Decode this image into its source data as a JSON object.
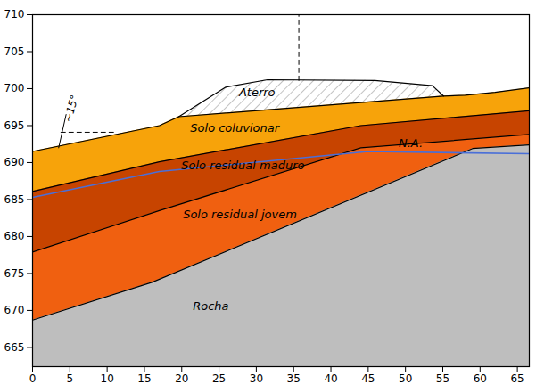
{
  "chart_data": {
    "type": "area",
    "xlim": [
      0,
      66.6
    ],
    "ylim": [
      662.4,
      710
    ],
    "xticks": [
      0,
      5,
      10,
      15,
      20,
      25,
      30,
      35,
      40,
      45,
      50,
      55,
      60,
      65
    ],
    "yticks": [
      665,
      670,
      675,
      680,
      685,
      690,
      695,
      700,
      705,
      710
    ],
    "grid": false,
    "layers": [
      {
        "name": "Aterro",
        "color": "#ffffff",
        "line_style": "hatched",
        "x": [
          19.6,
          25.9,
          31.5,
          45.9,
          53.6,
          55.1
        ],
        "top": [
          696.2,
          700.2,
          701.2,
          701.1,
          700.4,
          699.0
        ],
        "label_at": [
          30.1,
          699.5
        ]
      },
      {
        "name": "Solo coluvionar",
        "color": "#f7a30a",
        "x": [
          0,
          17,
          19.6,
          55.1,
          58,
          62,
          66.6
        ],
        "top": [
          691.5,
          695,
          696.2,
          699.0,
          699.1,
          699.5,
          700.1
        ],
        "label_at": [
          27.1,
          694.7
        ]
      },
      {
        "name": "Solo residual maduro",
        "color": "#c74400",
        "x": [
          0,
          17,
          44,
          66.6
        ],
        "top": [
          686.1,
          690.1,
          695,
          697
        ],
        "label_at": [
          28.2,
          689.6
        ]
      },
      {
        "name": "Solo residual jovem",
        "color": "#f06010",
        "x": [
          0,
          17,
          44,
          66.6
        ],
        "top": [
          677.9,
          683.5,
          692,
          693.8
        ],
        "label_at": [
          27.8,
          683
        ]
      },
      {
        "name": "Rocha",
        "color": "#bebebe",
        "x": [
          0,
          16,
          59,
          66.6
        ],
        "top": [
          668.7,
          673.8,
          691.9,
          692.4
        ],
        "label_at": [
          23.9,
          670.6
        ]
      }
    ],
    "series": [
      {
        "name": "N.A.",
        "type": "line",
        "color": "#4a6fd8",
        "x": [
          0,
          17,
          45,
          66.6
        ],
        "values": [
          685.3,
          688.8,
          691.5,
          691.2
        ],
        "label_at": [
          50.7,
          692.6
        ]
      }
    ],
    "guides": [
      {
        "x": [
          35.7,
          35.7
        ],
        "y": [
          701.1,
          710
        ],
        "line_style": "dashed"
      },
      {
        "x": [
          3.8,
          11.2
        ],
        "y": [
          694.1,
          694.1
        ],
        "line_style": "dashed"
      },
      {
        "x": [
          3.5,
          4.5
        ],
        "y": [
          692.0,
          696.5
        ],
        "line_style": "solid"
      }
    ],
    "annotations": [
      {
        "text": "~15°",
        "x": 5.2,
        "y": 697.3
      }
    ]
  }
}
